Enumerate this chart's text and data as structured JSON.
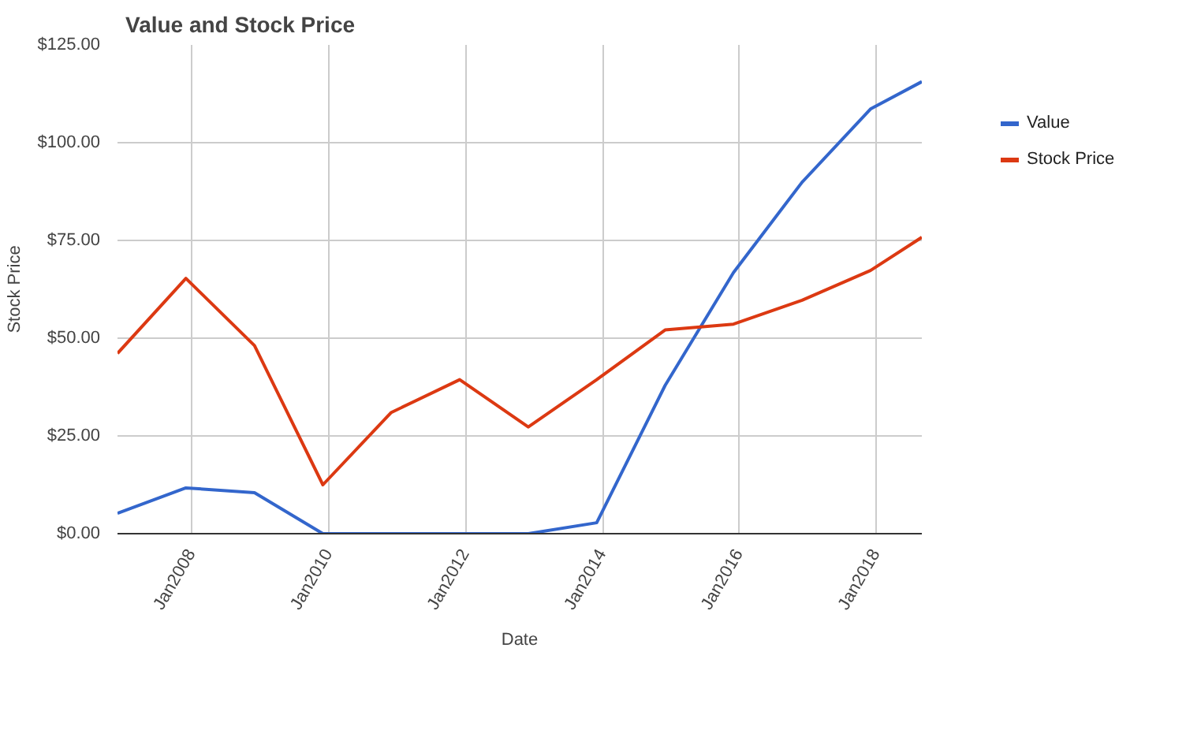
{
  "chart_data": {
    "type": "line",
    "title": "Value and Stock Price",
    "xlabel": "Date",
    "ylabel": "Stock Price",
    "x": [
      "2006-12",
      "2007-12",
      "2008-12",
      "2009-12",
      "2010-12",
      "2011-12",
      "2012-12",
      "2013-12",
      "2014-12",
      "2015-12",
      "2016-12",
      "2017-12",
      "2018-09"
    ],
    "series": [
      {
        "name": "Value",
        "color": "#3366cc",
        "values": [
          5.2,
          11.7,
          10.5,
          0,
          0,
          0,
          0,
          2.8,
          37.9,
          66.8,
          89.9,
          108.6,
          115.6
        ]
      },
      {
        "name": "Stock Price",
        "color": "#dc3912",
        "values": [
          46.1,
          65.3,
          48.1,
          12.5,
          31.0,
          39.4,
          27.3,
          39.4,
          52.1,
          53.6,
          59.7,
          67.3,
          75.8
        ]
      }
    ],
    "xlim": [
      "2006-12",
      "2018-09"
    ],
    "xticks": [
      {
        "value": "2008-01",
        "label": "Jan2008"
      },
      {
        "value": "2010-01",
        "label": "Jan2010"
      },
      {
        "value": "2012-01",
        "label": "Jan2012"
      },
      {
        "value": "2014-01",
        "label": "Jan2014"
      },
      {
        "value": "2016-01",
        "label": "Jan2016"
      },
      {
        "value": "2018-01",
        "label": "Jan2018"
      }
    ],
    "ylim": [
      0,
      125
    ],
    "yticks": [
      {
        "value": 0,
        "label": "$0.00"
      },
      {
        "value": 25,
        "label": "$25.00"
      },
      {
        "value": 50,
        "label": "$50.00"
      },
      {
        "value": 75,
        "label": "$75.00"
      },
      {
        "value": 100,
        "label": "$100.00"
      },
      {
        "value": 125,
        "label": "$125.00"
      }
    ],
    "grid": true,
    "legend": "top right",
    "marker": "none",
    "line_style": "solid"
  }
}
